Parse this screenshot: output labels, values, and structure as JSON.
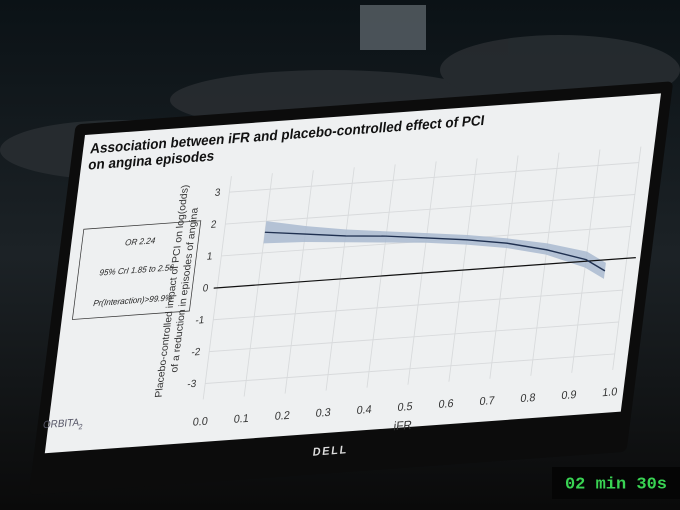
{
  "chart_data": {
    "type": "line",
    "title": [
      "Association between iFR and placebo-controlled effect of PCI",
      "on angina episodes"
    ],
    "xlabel": "iFR",
    "ylabel": [
      "Placebo-controlled impact of PCI on log(odds)",
      "of a reduction in episodes of angina"
    ],
    "x": [
      0.1,
      0.2,
      0.3,
      0.4,
      0.5,
      0.6,
      0.7,
      0.8,
      0.9,
      0.95
    ],
    "values": [
      1.65,
      1.5,
      1.35,
      1.25,
      1.1,
      0.95,
      0.75,
      0.45,
      0.05,
      -0.35
    ],
    "lower": [
      1.3,
      1.25,
      1.15,
      1.05,
      0.95,
      0.8,
      0.6,
      0.3,
      -0.2,
      -0.6
    ],
    "upper": [
      2.0,
      1.75,
      1.55,
      1.4,
      1.25,
      1.1,
      0.9,
      0.65,
      0.3,
      -0.1
    ],
    "color": "#1f3050",
    "band_color": "#a9bad0",
    "reference_line": 0,
    "xlim": [
      0,
      1
    ],
    "ylim": [
      -3.5,
      3.5
    ],
    "xticks": [
      {
        "value": 0,
        "label": "0.0"
      },
      0.1,
      0.2,
      0.3,
      0.4,
      0.5,
      0.6,
      0.7,
      0.8,
      0.9,
      {
        "value": 1,
        "label": "1.0"
      }
    ],
    "yticks": [
      -3,
      -2,
      -1,
      0,
      1,
      2,
      3
    ],
    "grid": true
  },
  "annotation_box": [
    "OR 2.24",
    "95% CrI 1.85 to 2.56",
    "Pr(Interaction)>99.9%"
  ],
  "logo": {
    "text": "ORBITA",
    "subscript": "2"
  },
  "brand": "DELL",
  "timer": "02 min 30s"
}
